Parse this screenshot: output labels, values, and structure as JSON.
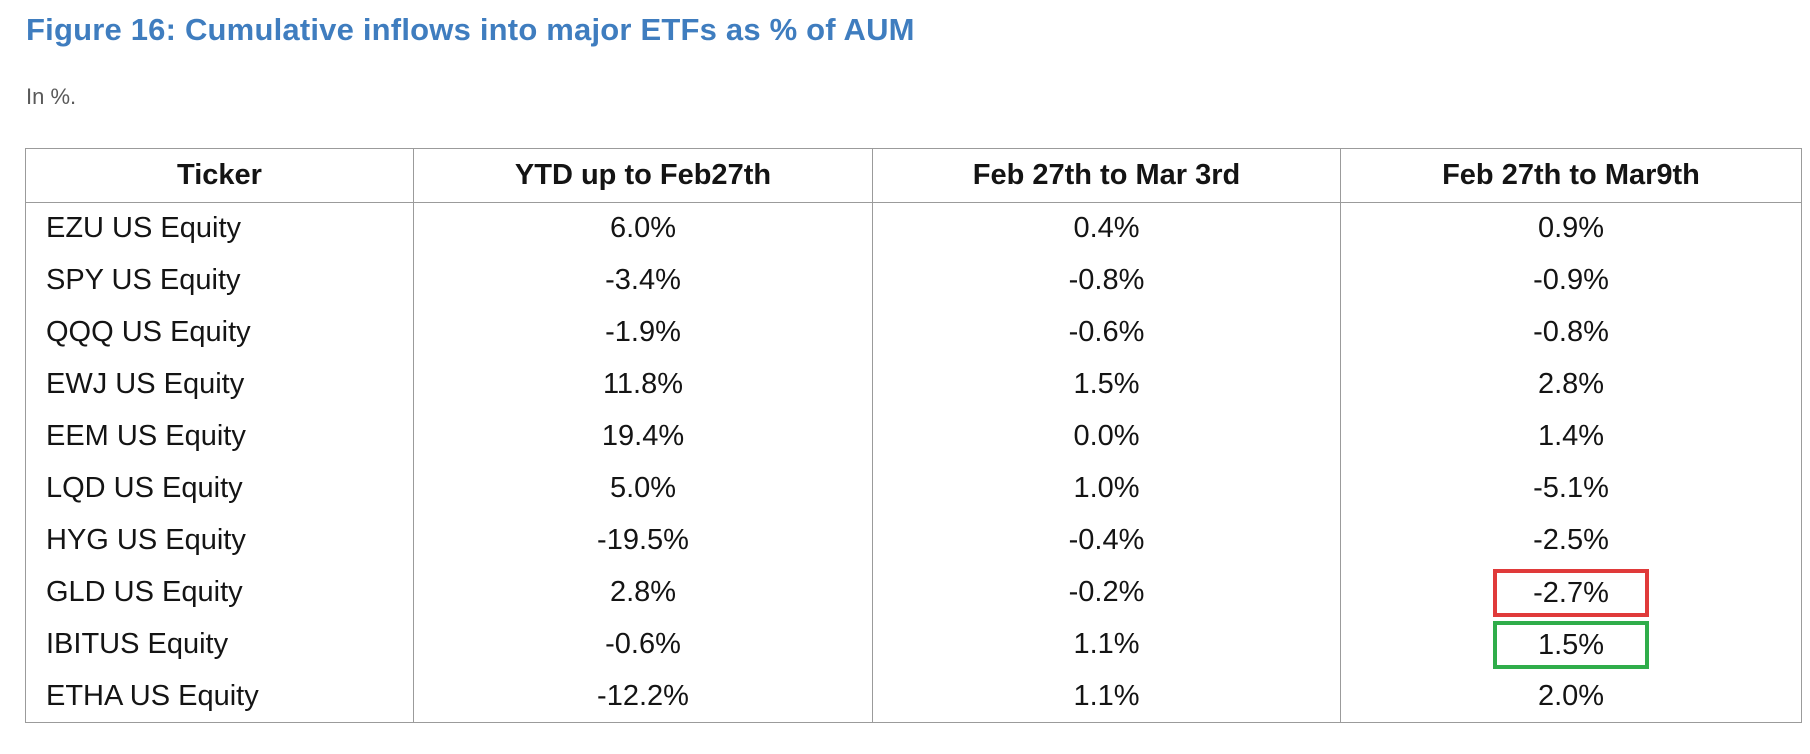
{
  "figure": {
    "title": "Figure 16: Cumulative inflows into major ETFs as % of AUM",
    "subtitle": "In %."
  },
  "table": {
    "columns": [
      "Ticker",
      "YTD up to Feb27th",
      "Feb 27th to Mar 3rd",
      "Feb 27th to Mar9th"
    ],
    "rows": [
      {
        "ticker": "EZU US Equity",
        "ytd_to_feb27": "6.0%",
        "feb27_to_mar3": "0.4%",
        "feb27_to_mar9": "0.9%",
        "highlight": null
      },
      {
        "ticker": "SPY US Equity",
        "ytd_to_feb27": "-3.4%",
        "feb27_to_mar3": "-0.8%",
        "feb27_to_mar9": "-0.9%",
        "highlight": null
      },
      {
        "ticker": "QQQ US Equity",
        "ytd_to_feb27": "-1.9%",
        "feb27_to_mar3": "-0.6%",
        "feb27_to_mar9": "-0.8%",
        "highlight": null
      },
      {
        "ticker": "EWJ US Equity",
        "ytd_to_feb27": "11.8%",
        "feb27_to_mar3": "1.5%",
        "feb27_to_mar9": "2.8%",
        "highlight": null
      },
      {
        "ticker": "EEM US Equity",
        "ytd_to_feb27": "19.4%",
        "feb27_to_mar3": "0.0%",
        "feb27_to_mar9": "1.4%",
        "highlight": null
      },
      {
        "ticker": "LQD US Equity",
        "ytd_to_feb27": "5.0%",
        "feb27_to_mar3": "1.0%",
        "feb27_to_mar9": "-5.1%",
        "highlight": null
      },
      {
        "ticker": "HYG US Equity",
        "ytd_to_feb27": "-19.5%",
        "feb27_to_mar3": "-0.4%",
        "feb27_to_mar9": "-2.5%",
        "highlight": null
      },
      {
        "ticker": "GLD US Equity",
        "ytd_to_feb27": "2.8%",
        "feb27_to_mar3": "-0.2%",
        "feb27_to_mar9": "-2.7%",
        "highlight": "red"
      },
      {
        "ticker": "IBITUS Equity",
        "ytd_to_feb27": "-0.6%",
        "feb27_to_mar3": "1.1%",
        "feb27_to_mar9": "1.5%",
        "highlight": "green"
      },
      {
        "ticker": "ETHA US Equity",
        "ytd_to_feb27": "-12.2%",
        "feb27_to_mar3": "1.1%",
        "feb27_to_mar9": "2.0%",
        "highlight": null
      }
    ]
  },
  "colors": {
    "title_blue": "#3f7dbf",
    "subtitle_gray": "#595959",
    "table_border_gray": "#9b9b9b",
    "text_black": "#141414",
    "highlight_red": "#e03a3a",
    "highlight_green": "#2fad4a"
  }
}
